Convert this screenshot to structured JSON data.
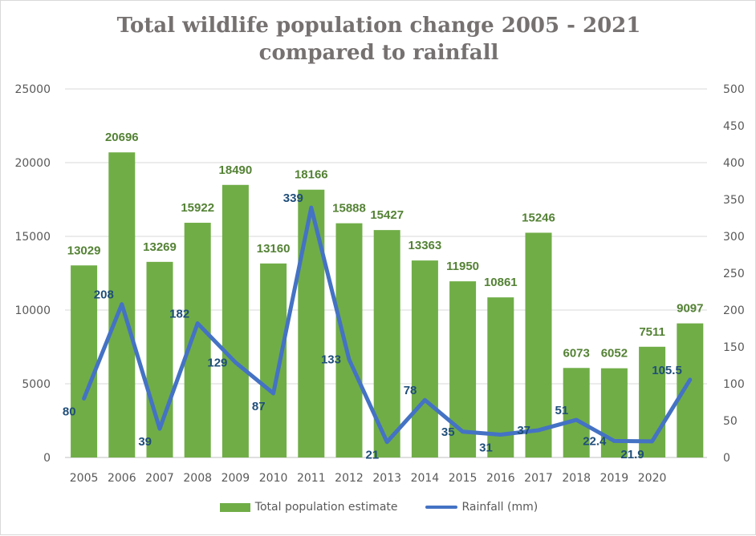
{
  "chart_data": {
    "type": "bar",
    "title": [
      "Total wildlife population change 2005 - 2021",
      "compared to rainfall"
    ],
    "categories": [
      "2005",
      "2006",
      "2007",
      "2008",
      "2009",
      "2010",
      "2011",
      "2012",
      "2013",
      "2014",
      "2015",
      "2016",
      "2017",
      "2018",
      "2019",
      "2020",
      ""
    ],
    "series": [
      {
        "name": "Total population estimate",
        "kind": "bar",
        "axis": "left",
        "color": "#70ad47",
        "label_color": "#548235",
        "values": [
          13029,
          20696,
          13269,
          15922,
          18490,
          13160,
          18166,
          15888,
          15427,
          13363,
          11950,
          10861,
          15246,
          6073,
          6052,
          7511,
          9097
        ]
      },
      {
        "name": "Rainfall (mm)",
        "kind": "line",
        "axis": "right",
        "color": "#4472c4",
        "label_color": "#1f4e79",
        "values": [
          80,
          208,
          39,
          182,
          129,
          87,
          339,
          133,
          21,
          78,
          35,
          31,
          37,
          51,
          22.4,
          21.9,
          105.5
        ]
      }
    ],
    "y_left": {
      "min": 0,
      "max": 25000,
      "ticks": [
        0,
        5000,
        10000,
        15000,
        20000,
        25000
      ]
    },
    "y_right": {
      "min": 0,
      "max": 500,
      "ticks": [
        0,
        50,
        100,
        150,
        200,
        250,
        300,
        350,
        400,
        450,
        500
      ]
    },
    "grid": true,
    "legend": "bottom"
  }
}
